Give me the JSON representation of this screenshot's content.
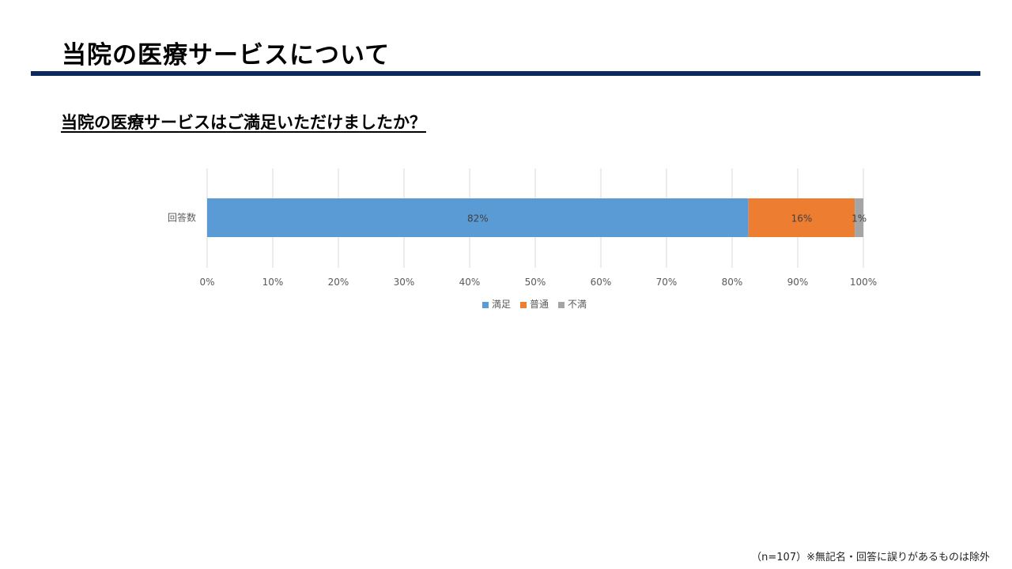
{
  "page": {
    "title": "当院の医療サービスについて",
    "question": "当院の医療サービスはご満足いただけましたか？",
    "footnote": "（n=107）※無記名・回答に誤りがあるものは除外"
  },
  "chart_data": {
    "type": "bar",
    "orientation": "horizontal",
    "stacked": true,
    "percent_stacked": true,
    "categories": [
      "回答数"
    ],
    "series": [
      {
        "name": "満足",
        "values": [
          82.5
        ],
        "label": "82%",
        "color": "#5b9bd5"
      },
      {
        "name": "普通",
        "values": [
          16.2
        ],
        "label": "16%",
        "color": "#ed7d31"
      },
      {
        "name": "不満",
        "values": [
          1.3
        ],
        "label": "1%",
        "color": "#a5a5a5"
      }
    ],
    "xlim": [
      0,
      100
    ],
    "xticks": [
      0,
      10,
      20,
      30,
      40,
      50,
      60,
      70,
      80,
      90,
      100
    ],
    "xtick_labels": [
      "0%",
      "10%",
      "20%",
      "30%",
      "40%",
      "50%",
      "60%",
      "70%",
      "80%",
      "90%",
      "100%"
    ],
    "grid": true,
    "legend": "bottom"
  }
}
